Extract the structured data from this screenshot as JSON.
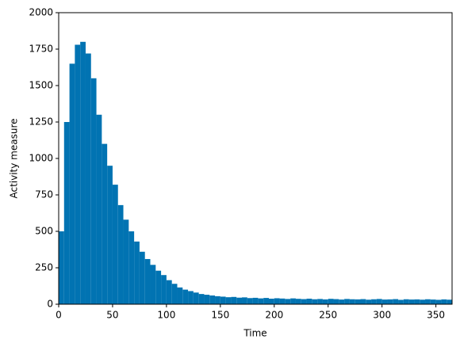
{
  "chart_data": {
    "type": "histogram",
    "x_label": "Time",
    "y_label": "Activity measure",
    "color": "#0173b2",
    "bins": [
      0,
      5,
      10,
      15,
      20,
      25,
      30,
      35,
      40,
      45,
      50,
      55,
      60,
      65,
      70,
      75,
      80,
      85,
      90,
      95,
      100,
      105,
      110,
      115,
      120,
      125,
      130,
      135,
      140,
      145,
      150,
      155,
      160,
      165,
      170,
      175,
      180,
      185,
      190,
      195,
      200,
      205,
      210,
      215,
      220,
      225,
      230,
      235,
      240,
      245,
      250,
      255,
      260,
      265,
      270,
      275,
      280,
      285,
      290,
      295,
      300,
      305,
      310,
      315,
      320,
      325,
      330,
      335,
      340,
      345,
      350,
      355,
      360,
      365
    ],
    "values": [
      500,
      1250,
      1650,
      1780,
      1800,
      1720,
      1550,
      1300,
      1100,
      950,
      820,
      680,
      580,
      500,
      430,
      360,
      310,
      270,
      230,
      200,
      165,
      140,
      115,
      100,
      90,
      80,
      70,
      65,
      60,
      55,
      52,
      48,
      50,
      45,
      47,
      42,
      44,
      40,
      43,
      38,
      41,
      39,
      36,
      40,
      37,
      35,
      38,
      34,
      36,
      33,
      37,
      35,
      32,
      36,
      34,
      33,
      35,
      31,
      34,
      36,
      32,
      33,
      35,
      30,
      34,
      32,
      33,
      31,
      34,
      32,
      30,
      33,
      31
    ],
    "xlim": [
      0,
      365
    ],
    "ylim": [
      0,
      2000
    ],
    "xticks": [
      0,
      50,
      100,
      150,
      200,
      250,
      300,
      350
    ],
    "yticks": [
      0,
      250,
      500,
      750,
      1000,
      1250,
      1500,
      1750,
      2000
    ]
  }
}
